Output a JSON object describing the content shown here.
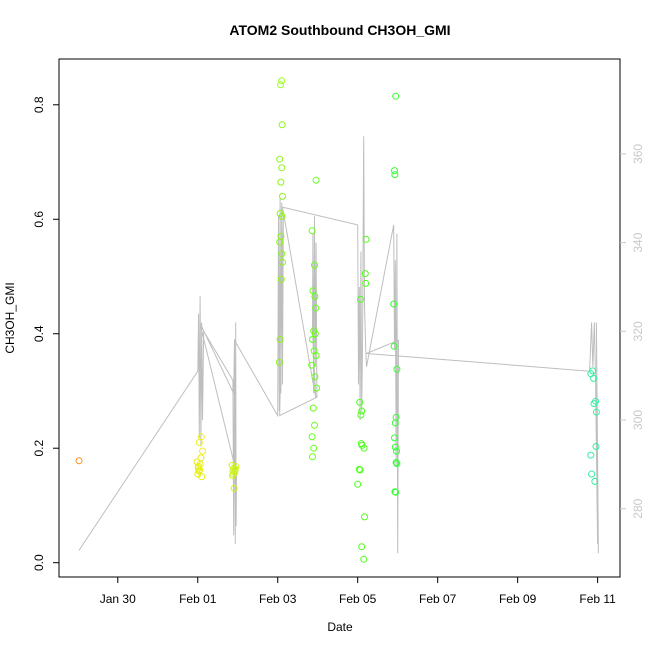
{
  "chart_data": {
    "type": "scatter",
    "title": "ATOM2 Southbound CH3OH_GMI",
    "xlabel": "Date",
    "ylabel": "CH3OH_GMI",
    "x_ticks": [
      {
        "day": 0,
        "label": "Jan 30"
      },
      {
        "day": 2,
        "label": "Feb 01"
      },
      {
        "day": 4,
        "label": "Feb 03"
      },
      {
        "day": 6,
        "label": "Feb 05"
      },
      {
        "day": 8,
        "label": "Feb 07"
      },
      {
        "day": 10,
        "label": "Feb 09"
      },
      {
        "day": 12,
        "label": "Feb 11"
      }
    ],
    "xlim": [
      -1.47,
      12.56
    ],
    "ylim": [
      -0.025,
      0.88
    ],
    "y_ticks": [
      0.0,
      0.2,
      0.4,
      0.6,
      0.8
    ],
    "y2_ticks": [
      280,
      300,
      320,
      340,
      360
    ],
    "y2lim": [
      264.6,
      381.4
    ],
    "background_line_color": "#bebebe",
    "y2_tick_color": "#c8c8c8",
    "points": [
      {
        "x": -0.97,
        "y": 0.178,
        "c": "#ff8c1a"
      },
      {
        "x": 1.98,
        "y": 0.176,
        "c": "#e6ee10"
      },
      {
        "x": 2.02,
        "y": 0.168,
        "c": "#e6ee10"
      },
      {
        "x": 2.05,
        "y": 0.162,
        "c": "#e6ee10"
      },
      {
        "x": 2.0,
        "y": 0.155,
        "c": "#e6ee10"
      },
      {
        "x": 2.08,
        "y": 0.183,
        "c": "#e6ee10"
      },
      {
        "x": 2.1,
        "y": 0.15,
        "c": "#e6ee10"
      },
      {
        "x": 2.04,
        "y": 0.21,
        "c": "#f0f020"
      },
      {
        "x": 2.12,
        "y": 0.195,
        "c": "#f0f020"
      },
      {
        "x": 2.06,
        "y": 0.172,
        "c": "#e6ee10"
      },
      {
        "x": 2.01,
        "y": 0.165,
        "c": "#e6ee10"
      },
      {
        "x": 2.09,
        "y": 0.22,
        "c": "#f0f020"
      },
      {
        "x": 2.03,
        "y": 0.16,
        "c": "#e6ee10"
      },
      {
        "x": 2.86,
        "y": 0.17,
        "c": "#ccf51a"
      },
      {
        "x": 2.9,
        "y": 0.165,
        "c": "#ccf51a"
      },
      {
        "x": 2.93,
        "y": 0.158,
        "c": "#ccf51a"
      },
      {
        "x": 2.88,
        "y": 0.16,
        "c": "#ccf51a"
      },
      {
        "x": 2.95,
        "y": 0.168,
        "c": "#ccf51a"
      },
      {
        "x": 2.91,
        "y": 0.13,
        "c": "#ccf51a"
      },
      {
        "x": 2.87,
        "y": 0.152,
        "c": "#ccf51a"
      },
      {
        "x": 2.94,
        "y": 0.163,
        "c": "#ccf51a"
      },
      {
        "x": 2.89,
        "y": 0.155,
        "c": "#ccf51a"
      },
      {
        "x": 4.07,
        "y": 0.835,
        "c": "#99ff1a"
      },
      {
        "x": 4.1,
        "y": 0.842,
        "c": "#99ff1a"
      },
      {
        "x": 4.11,
        "y": 0.765,
        "c": "#8cf51a"
      },
      {
        "x": 4.05,
        "y": 0.705,
        "c": "#8cf51a"
      },
      {
        "x": 4.1,
        "y": 0.69,
        "c": "#8cf51a"
      },
      {
        "x": 4.08,
        "y": 0.665,
        "c": "#8cf51a"
      },
      {
        "x": 4.12,
        "y": 0.64,
        "c": "#8cf51a"
      },
      {
        "x": 4.06,
        "y": 0.61,
        "c": "#8cf51a"
      },
      {
        "x": 4.11,
        "y": 0.605,
        "c": "#8cf51a"
      },
      {
        "x": 4.08,
        "y": 0.57,
        "c": "#8cf51a"
      },
      {
        "x": 4.05,
        "y": 0.56,
        "c": "#8cf51a"
      },
      {
        "x": 4.1,
        "y": 0.54,
        "c": "#8cf51a"
      },
      {
        "x": 4.12,
        "y": 0.525,
        "c": "#8cf51a"
      },
      {
        "x": 4.09,
        "y": 0.495,
        "c": "#8cf51a"
      },
      {
        "x": 4.06,
        "y": 0.39,
        "c": "#8cf51a"
      },
      {
        "x": 4.04,
        "y": 0.35,
        "c": "#8cf51a"
      },
      {
        "x": 4.86,
        "y": 0.58,
        "c": "#66ff1a"
      },
      {
        "x": 4.96,
        "y": 0.668,
        "c": "#66ff1a"
      },
      {
        "x": 4.92,
        "y": 0.52,
        "c": "#66ff1a"
      },
      {
        "x": 4.88,
        "y": 0.475,
        "c": "#66ff1a"
      },
      {
        "x": 4.93,
        "y": 0.465,
        "c": "#66ff1a"
      },
      {
        "x": 4.95,
        "y": 0.445,
        "c": "#66ff1a"
      },
      {
        "x": 4.9,
        "y": 0.405,
        "c": "#66ff1a"
      },
      {
        "x": 4.94,
        "y": 0.4,
        "c": "#66ff1a"
      },
      {
        "x": 4.87,
        "y": 0.39,
        "c": "#66ff1a"
      },
      {
        "x": 4.91,
        "y": 0.37,
        "c": "#66ff1a"
      },
      {
        "x": 4.96,
        "y": 0.362,
        "c": "#66ff1a"
      },
      {
        "x": 4.85,
        "y": 0.345,
        "c": "#66ff1a"
      },
      {
        "x": 4.93,
        "y": 0.325,
        "c": "#66ff1a"
      },
      {
        "x": 4.97,
        "y": 0.305,
        "c": "#66ff1a"
      },
      {
        "x": 4.89,
        "y": 0.27,
        "c": "#66ff1a"
      },
      {
        "x": 4.92,
        "y": 0.24,
        "c": "#66ff1a"
      },
      {
        "x": 4.86,
        "y": 0.22,
        "c": "#66ff1a"
      },
      {
        "x": 4.9,
        "y": 0.2,
        "c": "#66ff1a"
      },
      {
        "x": 4.87,
        "y": 0.185,
        "c": "#66ff1a"
      },
      {
        "x": 6.07,
        "y": 0.46,
        "c": "#4dff1a"
      },
      {
        "x": 6.21,
        "y": 0.565,
        "c": "#4dff1a"
      },
      {
        "x": 6.19,
        "y": 0.505,
        "c": "#4dff1a"
      },
      {
        "x": 6.2,
        "y": 0.488,
        "c": "#4dff1a"
      },
      {
        "x": 6.05,
        "y": 0.28,
        "c": "#4dff1a"
      },
      {
        "x": 6.1,
        "y": 0.265,
        "c": "#4dff1a"
      },
      {
        "x": 6.08,
        "y": 0.258,
        "c": "#4dff1a"
      },
      {
        "x": 6.11,
        "y": 0.205,
        "c": "#4dff1a"
      },
      {
        "x": 6.09,
        "y": 0.208,
        "c": "#4dff1a"
      },
      {
        "x": 6.16,
        "y": 0.2,
        "c": "#4dff1a"
      },
      {
        "x": 6.04,
        "y": 0.163,
        "c": "#4dff1a"
      },
      {
        "x": 6.06,
        "y": 0.162,
        "c": "#4dff1a"
      },
      {
        "x": 6.0,
        "y": 0.137,
        "c": "#4dff1a"
      },
      {
        "x": 6.17,
        "y": 0.08,
        "c": "#4dff1a"
      },
      {
        "x": 6.1,
        "y": 0.028,
        "c": "#4dff1a"
      },
      {
        "x": 6.15,
        "y": 0.006,
        "c": "#4dff1a"
      },
      {
        "x": 6.95,
        "y": 0.815,
        "c": "#33ff33"
      },
      {
        "x": 6.92,
        "y": 0.685,
        "c": "#33ff33"
      },
      {
        "x": 6.93,
        "y": 0.678,
        "c": "#33ff33"
      },
      {
        "x": 6.9,
        "y": 0.452,
        "c": "#33ff33"
      },
      {
        "x": 6.91,
        "y": 0.378,
        "c": "#33ff33"
      },
      {
        "x": 6.98,
        "y": 0.338,
        "c": "#33ff33"
      },
      {
        "x": 6.96,
        "y": 0.254,
        "c": "#33ff33"
      },
      {
        "x": 6.94,
        "y": 0.244,
        "c": "#33ff33"
      },
      {
        "x": 6.92,
        "y": 0.218,
        "c": "#33ff33"
      },
      {
        "x": 6.94,
        "y": 0.202,
        "c": "#33ff33"
      },
      {
        "x": 6.97,
        "y": 0.195,
        "c": "#33ff33"
      },
      {
        "x": 6.96,
        "y": 0.175,
        "c": "#33ff33"
      },
      {
        "x": 6.98,
        "y": 0.173,
        "c": "#33ff33"
      },
      {
        "x": 6.93,
        "y": 0.124,
        "c": "#33ff33"
      },
      {
        "x": 6.95,
        "y": 0.123,
        "c": "#33ff33"
      },
      {
        "x": 11.83,
        "y": 0.33,
        "c": "#33f0a0"
      },
      {
        "x": 11.88,
        "y": 0.335,
        "c": "#33f0a0"
      },
      {
        "x": 11.9,
        "y": 0.322,
        "c": "#33f0a0"
      },
      {
        "x": 11.91,
        "y": 0.278,
        "c": "#33f0a0"
      },
      {
        "x": 11.95,
        "y": 0.282,
        "c": "#33f0a0"
      },
      {
        "x": 11.97,
        "y": 0.263,
        "c": "#33f0a0"
      },
      {
        "x": 11.96,
        "y": 0.203,
        "c": "#33f0a0"
      },
      {
        "x": 11.83,
        "y": 0.188,
        "c": "#33f0a0"
      },
      {
        "x": 11.85,
        "y": 0.155,
        "c": "#33f0a0"
      },
      {
        "x": 11.93,
        "y": 0.142,
        "c": "#33f0a0"
      }
    ],
    "overlay_line": [
      [
        -0.97,
        270.6
      ],
      [
        2.0,
        311
      ],
      [
        2.02,
        324
      ],
      [
        2.04,
        296
      ],
      [
        2.06,
        328
      ],
      [
        2.08,
        294
      ],
      [
        2.1,
        322
      ],
      [
        2.12,
        300
      ],
      [
        2.15,
        320
      ],
      [
        2.88,
        309
      ],
      [
        2.9,
        274
      ],
      [
        2.92,
        318
      ],
      [
        2.94,
        272
      ],
      [
        2.95,
        322
      ],
      [
        2.96,
        276
      ],
      [
        2.97,
        288
      ],
      [
        2.05,
        322
      ],
      [
        2.9,
        306
      ],
      [
        2.92,
        318
      ],
      [
        4.0,
        301
      ],
      [
        4.02,
        346
      ],
      [
        4.04,
        302
      ],
      [
        4.06,
        350
      ],
      [
        4.08,
        306
      ],
      [
        4.1,
        349
      ],
      [
        4.12,
        308
      ],
      [
        4.14,
        346
      ],
      [
        4.05,
        301
      ],
      [
        4.95,
        305
      ],
      [
        4.87,
        320
      ],
      [
        4.88,
        342
      ],
      [
        4.9,
        306
      ],
      [
        4.92,
        346
      ],
      [
        4.94,
        312
      ],
      [
        4.96,
        340
      ],
      [
        4.98,
        305
      ],
      [
        4.93,
        306
      ],
      [
        4.12,
        348
      ],
      [
        6.0,
        344
      ],
      [
        6.02,
        308
      ],
      [
        6.04,
        330
      ],
      [
        6.06,
        300
      ],
      [
        6.08,
        338
      ],
      [
        6.1,
        302
      ],
      [
        6.12,
        316
      ],
      [
        6.15,
        364
      ],
      [
        6.17,
        326
      ],
      [
        6.2,
        316
      ],
      [
        6.22,
        312
      ],
      [
        6.9,
        344
      ],
      [
        6.92,
        316
      ],
      [
        6.94,
        336
      ],
      [
        6.96,
        290
      ],
      [
        6.98,
        342
      ],
      [
        7.0,
        270
      ],
      [
        7.02,
        318
      ],
      [
        6.22,
        315
      ],
      [
        11.8,
        311
      ],
      [
        11.85,
        322
      ],
      [
        11.88,
        312
      ],
      [
        11.92,
        322
      ],
      [
        11.95,
        308
      ],
      [
        12.0,
        272
      ],
      [
        11.97,
        322
      ],
      [
        12.02,
        270
      ]
    ]
  }
}
